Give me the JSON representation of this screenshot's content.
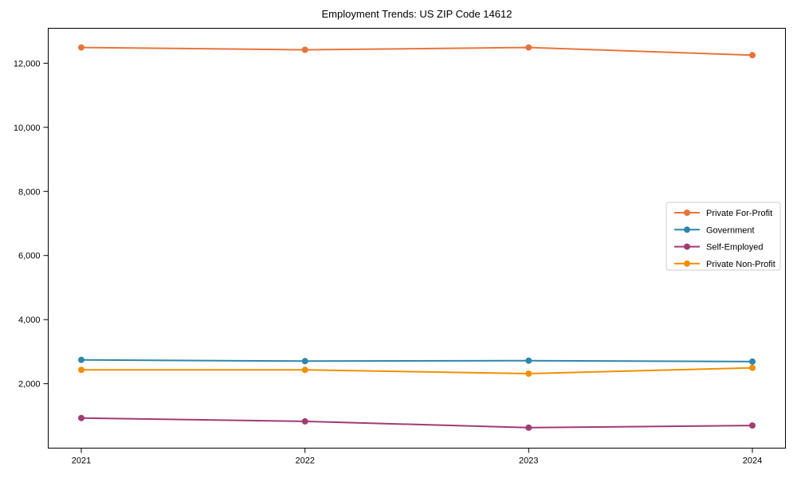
{
  "chart_data": {
    "type": "line",
    "title": "Employment Trends: US ZIP Code 14612",
    "xlabel": "",
    "ylabel": "",
    "categories": [
      "2021",
      "2022",
      "2023",
      "2024"
    ],
    "series": [
      {
        "name": "Private For-Profit",
        "color": "#E8743B",
        "values": [
          12490,
          12420,
          12490,
          12250
        ]
      },
      {
        "name": "Government",
        "color": "#2E86AB",
        "values": [
          2745,
          2705,
          2720,
          2690
        ]
      },
      {
        "name": "Self-Employed",
        "color": "#A23B72",
        "values": [
          930,
          825,
          630,
          695
        ]
      },
      {
        "name": "Private Non-Profit",
        "color": "#F18F01",
        "values": [
          2430,
          2430,
          2315,
          2495
        ]
      }
    ],
    "y_ticks": [
      2000,
      4000,
      6000,
      8000,
      10000,
      12000
    ],
    "y_tick_labels": [
      "2,000",
      "4,000",
      "6,000",
      "8,000",
      "10,000",
      "12,000"
    ],
    "ylim": [
      -10,
      13090
    ],
    "grid": false,
    "legend": {
      "position": "right-center",
      "entries": [
        "Private For-Profit",
        "Government",
        "Self-Employed",
        "Private Non-Profit"
      ],
      "border_color": "#cccccc",
      "background": "#ffffff"
    },
    "frame_color": "#000000",
    "marker": "circle"
  }
}
